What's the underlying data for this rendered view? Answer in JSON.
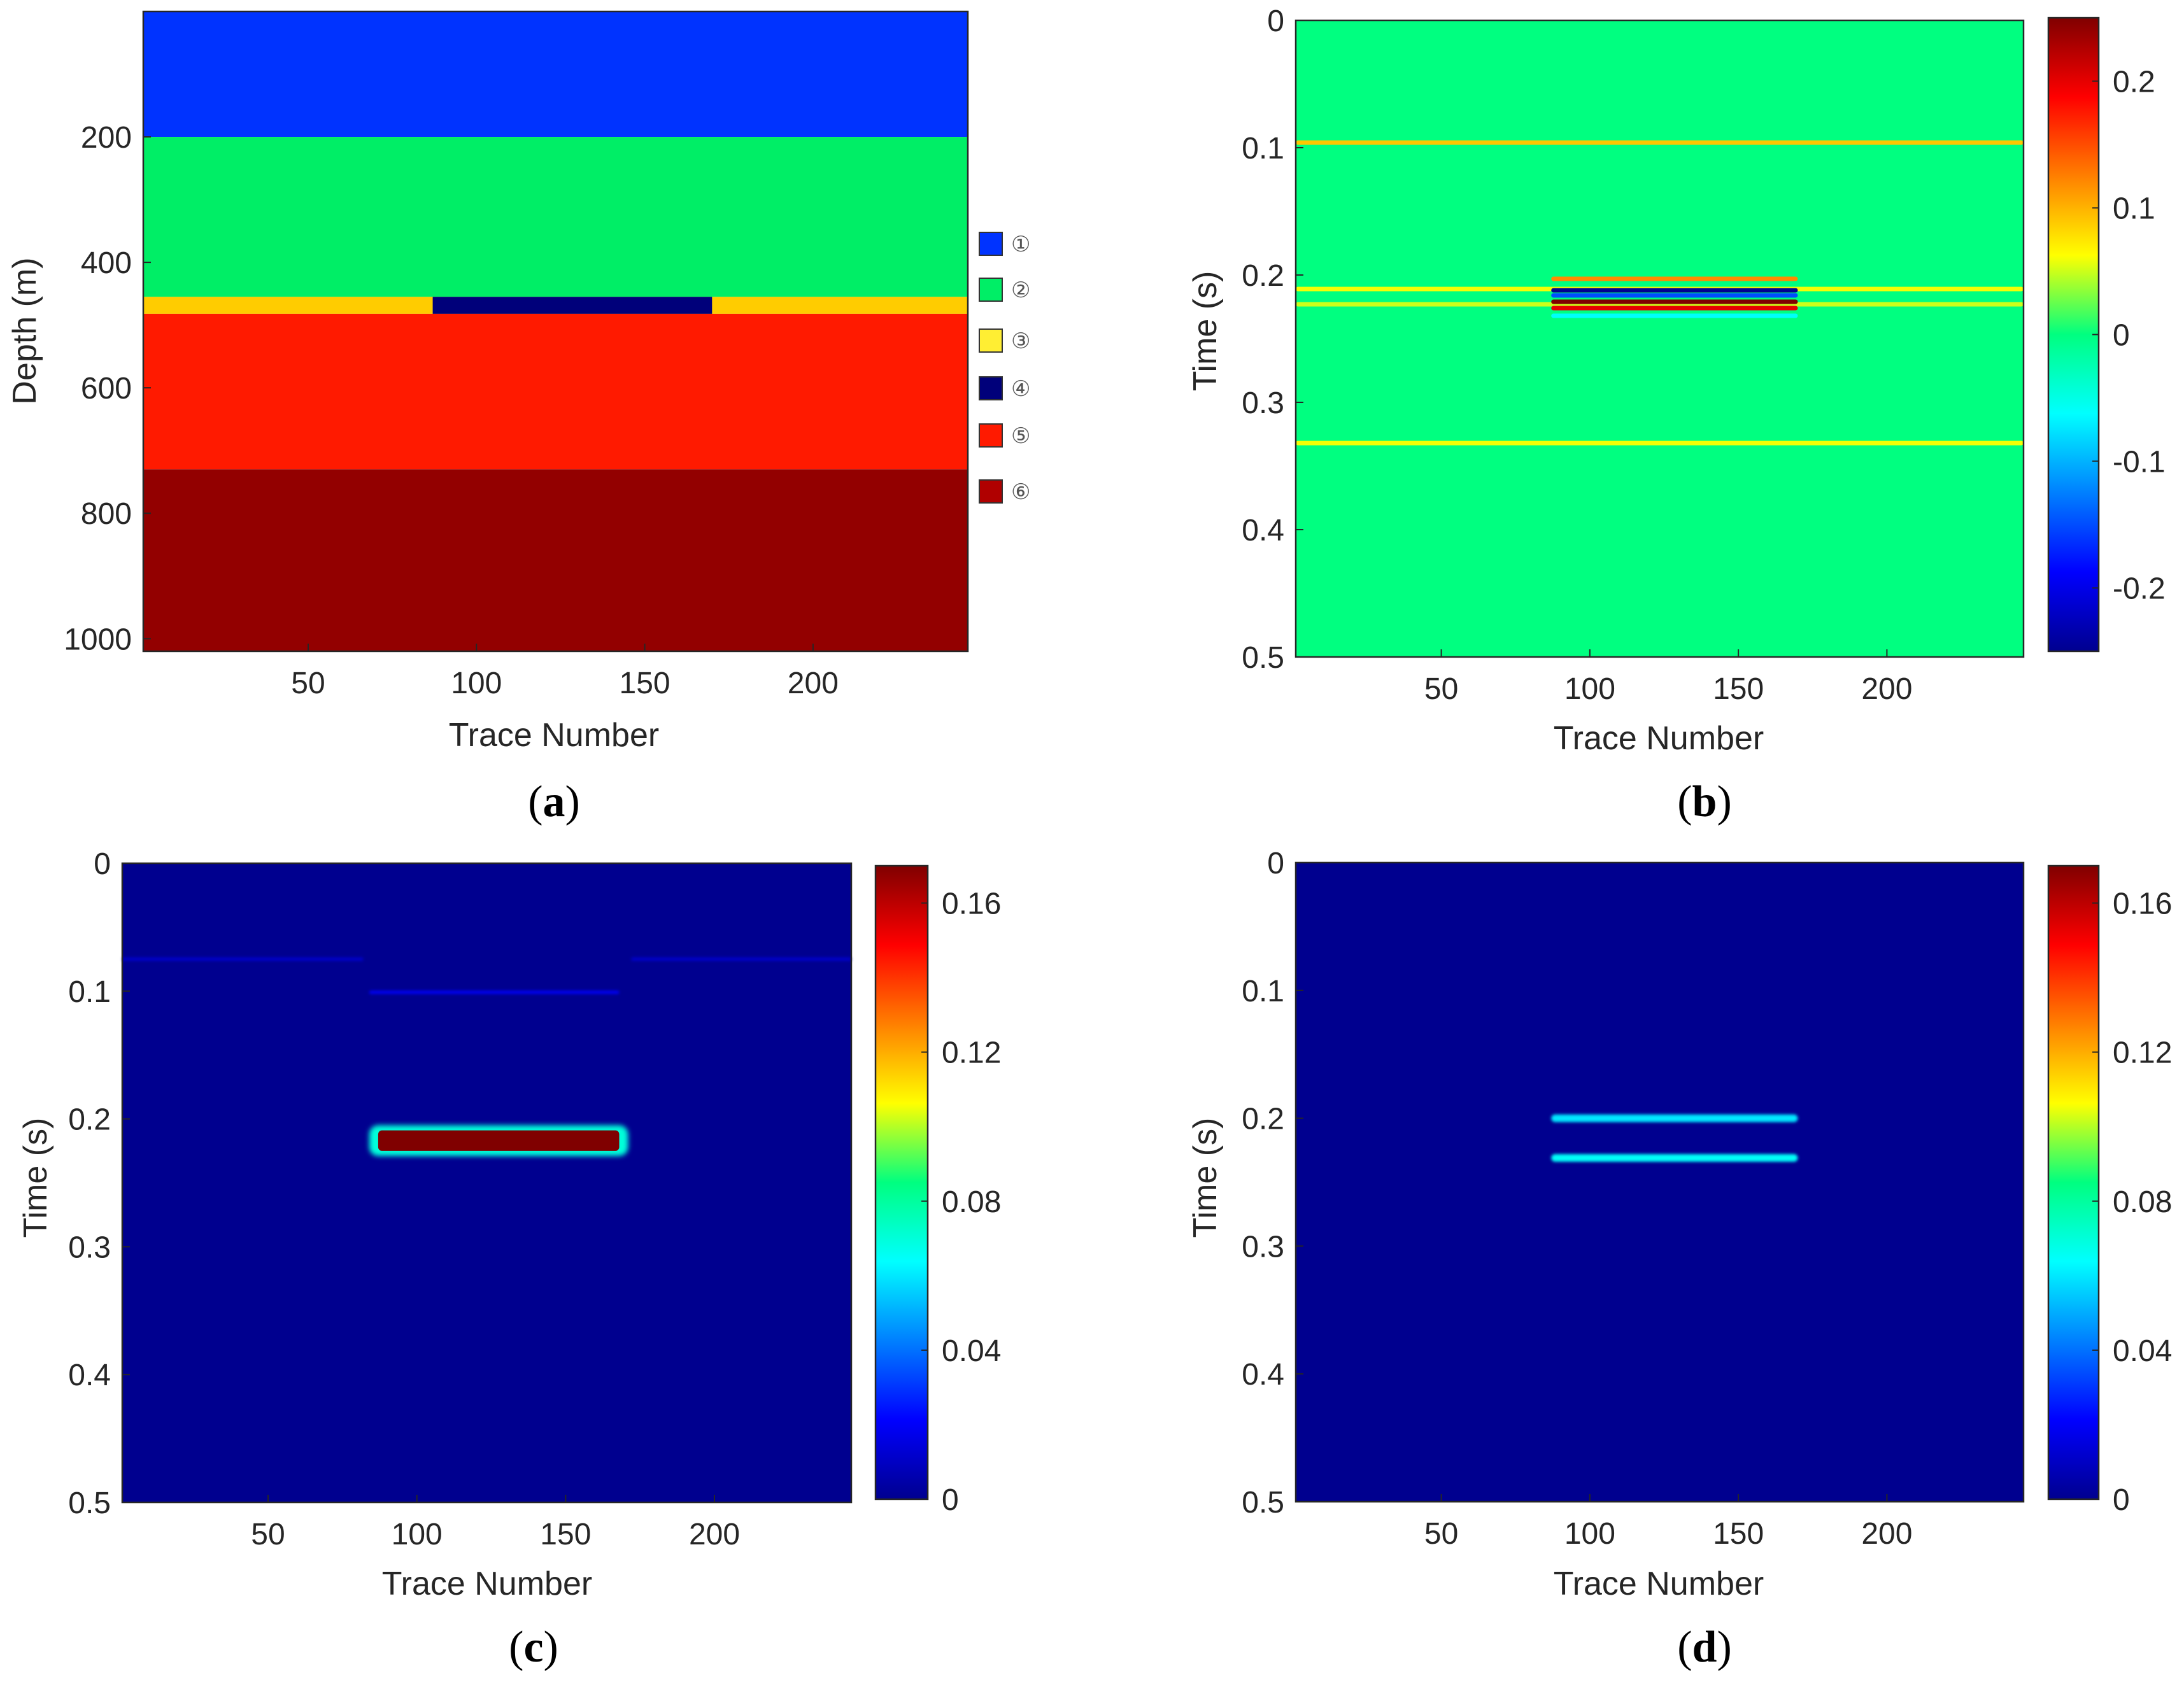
{
  "colormap_jet": [
    "#00008f",
    "#0000ff",
    "#00ffff",
    "#ffff00",
    "#ff0000",
    "#800000"
  ],
  "chart_data": [
    {
      "type": "heatmap",
      "panel": "a",
      "caption": "a",
      "xlabel": "Trace Number",
      "ylabel": "Depth (m)",
      "xlim": [
        1,
        246
      ],
      "ylim": [
        0,
        1020
      ],
      "x_ticks": [
        50,
        100,
        150,
        200
      ],
      "y_ticks": [
        200,
        400,
        600,
        800,
        1000
      ],
      "colorbar": false,
      "layers": [
        {
          "id": "①",
          "color": "#0033ff",
          "top": 0,
          "bottom": 200
        },
        {
          "id": "②",
          "color": "#00ee66",
          "top": 200,
          "bottom": 455
        },
        {
          "id": "③",
          "color": "#ffcc00",
          "top": 455,
          "bottom": 482
        },
        {
          "id": "④",
          "color": "#00007a",
          "top": 455,
          "bottom": 482,
          "x_from": 87,
          "x_to": 170
        },
        {
          "id": "⑤",
          "color": "#ff1a00",
          "top": 482,
          "bottom": 730
        },
        {
          "id": "⑥",
          "color": "#930000",
          "top": 730,
          "bottom": 1020
        }
      ],
      "legend": [
        "①",
        "②",
        "③",
        "④",
        "⑤",
        "⑥"
      ],
      "legend_colors": [
        "#0033ff",
        "#00ee66",
        "#ffee33",
        "#00007a",
        "#ff1a00",
        "#b00000"
      ]
    },
    {
      "type": "heatmap",
      "panel": "b",
      "caption": "b",
      "xlabel": "Trace Number",
      "ylabel": "Time (s)",
      "xlim": [
        1,
        246
      ],
      "ylim": [
        0,
        0.5
      ],
      "x_ticks": [
        50,
        100,
        150,
        200
      ],
      "y_ticks": [
        0,
        0.1,
        0.2,
        0.3,
        0.4,
        0.5
      ],
      "background_value": 0,
      "clim": [
        -0.25,
        0.25
      ],
      "colorbar_ticks": [
        0.2,
        0.1,
        0,
        -0.1,
        -0.2
      ],
      "events": [
        {
          "t": 0.096,
          "value": 0.09,
          "x_from": 1,
          "x_to": 246
        },
        {
          "t": 0.211,
          "value": 0.06,
          "x_from": 1,
          "x_to": 246
        },
        {
          "t": 0.223,
          "value": 0.05,
          "x_from": 1,
          "x_to": 246
        },
        {
          "t": 0.332,
          "value": 0.06,
          "x_from": 1,
          "x_to": 246
        },
        {
          "t": 0.203,
          "value": 0.12,
          "x_from": 87,
          "x_to": 170
        },
        {
          "t": 0.212,
          "value": -0.25,
          "x_from": 87,
          "x_to": 170
        },
        {
          "t": 0.216,
          "value": -0.15,
          "x_from": 87,
          "x_to": 170
        },
        {
          "t": 0.221,
          "value": 0.25,
          "x_from": 87,
          "x_to": 170
        },
        {
          "t": 0.226,
          "value": 0.2,
          "x_from": 87,
          "x_to": 170
        },
        {
          "t": 0.232,
          "value": -0.06,
          "x_from": 87,
          "x_to": 170
        }
      ]
    },
    {
      "type": "heatmap",
      "panel": "c",
      "caption": "c",
      "xlabel": "Trace Number",
      "ylabel": "Time (s)",
      "xlim": [
        1,
        246
      ],
      "ylim": [
        0,
        0.5
      ],
      "x_ticks": [
        50,
        100,
        150,
        200
      ],
      "y_ticks": [
        0,
        0.1,
        0.2,
        0.3,
        0.4,
        0.5
      ],
      "background_value": 0,
      "clim": [
        0,
        0.17
      ],
      "colorbar_ticks": [
        0.16,
        0.12,
        0.08,
        0.04,
        0
      ],
      "events": [
        {
          "t": 0.075,
          "value": 0.012,
          "x_from": 1,
          "x_to": 82
        },
        {
          "t": 0.075,
          "value": 0.012,
          "x_from": 172,
          "x_to": 246
        },
        {
          "t": 0.101,
          "value": 0.02,
          "x_from": 84,
          "x_to": 168
        },
        {
          "t_from": 0.205,
          "t_to": 0.229,
          "value": 0.17,
          "x_from": 84,
          "x_to": 171,
          "edge_value": 0.07
        }
      ]
    },
    {
      "type": "heatmap",
      "panel": "d",
      "caption": "d",
      "xlabel": "Trace Number",
      "ylabel": "Time (s)",
      "xlim": [
        1,
        246
      ],
      "ylim": [
        0,
        0.5
      ],
      "x_ticks": [
        50,
        100,
        150,
        200
      ],
      "y_ticks": [
        0,
        0.1,
        0.2,
        0.3,
        0.4,
        0.5
      ],
      "background_value": 0,
      "clim": [
        0,
        0.17
      ],
      "colorbar_ticks": [
        0.16,
        0.12,
        0.08,
        0.04,
        0
      ],
      "events": [
        {
          "t": 0.2,
          "value": 0.06,
          "x_from": 87,
          "x_to": 170
        },
        {
          "t": 0.231,
          "value": 0.065,
          "x_from": 87,
          "x_to": 170
        }
      ]
    }
  ]
}
